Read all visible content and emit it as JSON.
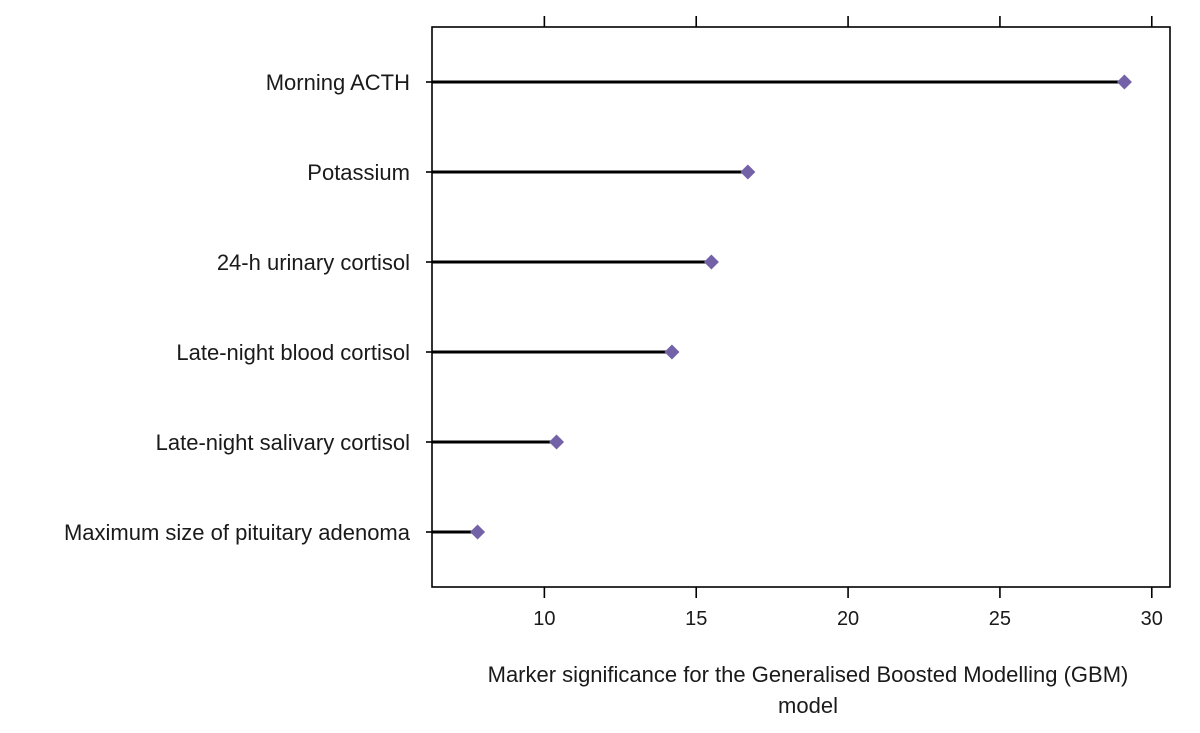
{
  "chart_data": {
    "type": "lollipop",
    "title": "",
    "xlabel_lines": [
      "Marker significance for the Generalised Boosted Modelling (GBM)",
      "model"
    ],
    "ylabel": "",
    "xlim": [
      6.3,
      30.6
    ],
    "x_ticks": [
      10,
      15,
      20,
      25,
      30
    ],
    "x_tick_labels": [
      "10",
      "15",
      "20",
      "25",
      "30"
    ],
    "categories": [
      "Morning ACTH",
      "Potassium",
      "24-h urinary cortisol",
      "Late-night blood cortisol",
      "Late-night salivary cortisol",
      "Maximum size of pituitary adenoma"
    ],
    "values": [
      29.1,
      16.7,
      15.5,
      14.2,
      10.4,
      7.8
    ],
    "grid": false,
    "legend": "none",
    "colors": {
      "marker": "#7462a8",
      "stem": "#000000",
      "axis": "#000000"
    }
  }
}
